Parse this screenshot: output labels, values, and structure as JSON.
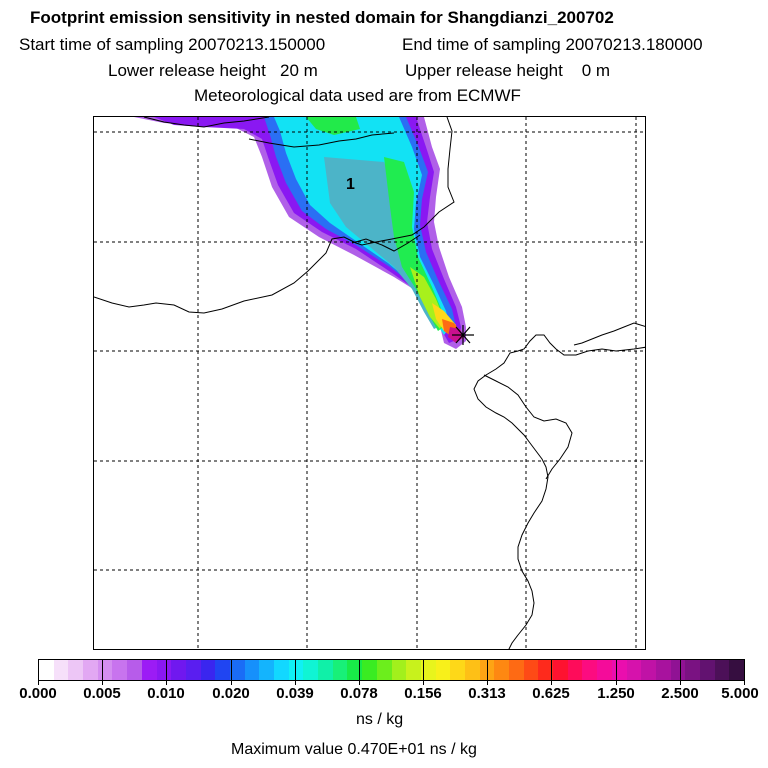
{
  "header": {
    "title": "Footprint emission sensitivity in nested domain for Shangdianzi_200702",
    "start_label": "Start time of sampling 20070213.150000",
    "end_label": "End time of sampling 20070213.180000",
    "lower_label": "Lower release height   20 m",
    "upper_label": "Upper release height    0 m",
    "met_label": "Meteorological data used are from ECMWF"
  },
  "map": {
    "release_marker": "1",
    "receptor_icon": "star-marker-icon",
    "gridlines": "dashed"
  },
  "colorbar": {
    "unit": "ns / kg",
    "labels": [
      "0.000",
      "0.005",
      "0.010",
      "0.020",
      "0.039",
      "0.078",
      "0.156",
      "0.313",
      "0.625",
      "1.250",
      "2.500",
      "5.000"
    ],
    "colors": [
      "#ffffff",
      "#f6e0fa",
      "#edc6f6",
      "#e2a8f3",
      "#d48ef0",
      "#c874ee",
      "#b75cea",
      "#9c1cf5",
      "#8a18f2",
      "#7018ef",
      "#5a1ef0",
      "#3a26ef",
      "#2045f2",
      "#1a6cf6",
      "#1690fb",
      "#14b4fd",
      "#12d8ff",
      "#10f0f4",
      "#10f4d4",
      "#10f0a8",
      "#18f078",
      "#18ea48",
      "#3aec22",
      "#6cee1c",
      "#a2f01c",
      "#c8f21c",
      "#e8f41c",
      "#f8f01a",
      "#fed818",
      "#fec016",
      "#fea414",
      "#fe8812",
      "#fe6a14",
      "#fe4a16",
      "#fe2a1c",
      "#fe1230",
      "#fe0c5a",
      "#fc0c80",
      "#f40c9a",
      "#ea0eae",
      "#d612ac",
      "#c012a6",
      "#a8129e",
      "#901294",
      "#7a1282",
      "#621270",
      "#4c1058",
      "#360e40"
    ],
    "max_value_label": "Maximum value  0.470E+01 ns / kg"
  },
  "chart_data": {
    "type": "heatmap",
    "title": "Footprint emission sensitivity in nested domain for Shangdianzi_200702",
    "subtitle": [
      "Start time of sampling 20070213.150000",
      "End time of sampling 20070213.180000",
      "Lower release height 20 m",
      "Upper release height 0 m",
      "Meteorological data used are from ECMWF"
    ],
    "colorbar_ticks": [
      0.0,
      0.005,
      0.01,
      0.02,
      0.039,
      0.078,
      0.156,
      0.313,
      0.625,
      1.25,
      2.5,
      5.0
    ],
    "unit": "ns / kg",
    "max_value": 4.7,
    "annotations": [
      "1"
    ]
  }
}
